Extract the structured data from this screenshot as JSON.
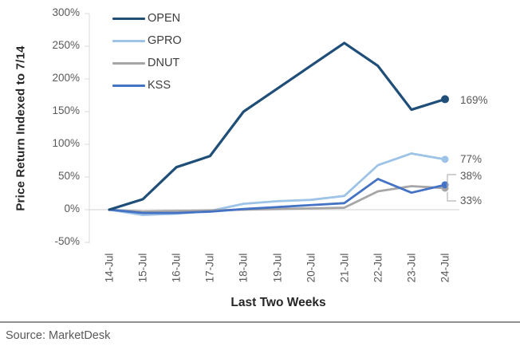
{
  "figure": {
    "source": "Source: MarketDesk"
  },
  "chart_data": {
    "type": "line",
    "title": "",
    "xlabel": "Last Two Weeks",
    "ylabel": "Price Return Indexed to 7/14",
    "x": [
      "14-Jul",
      "15-Jul",
      "16-Jul",
      "17-Jul",
      "18-Jul",
      "19-Jul",
      "20-Jul",
      "21-Jul",
      "22-Jul",
      "23-Jul",
      "24-Jul"
    ],
    "ylim": [
      -50,
      300
    ],
    "yticks": [
      300,
      250,
      200,
      150,
      100,
      50,
      0,
      -50
    ],
    "ytick_suffix": "%",
    "grid": "zero-baseline only",
    "legend_position": "top-left-inside",
    "axis_color": "#d9d9d9",
    "series": [
      {
        "name": "OPEN",
        "color": "#1f4e79",
        "end_label": "169%",
        "values": [
          0,
          16,
          65,
          82,
          150,
          185,
          220,
          255,
          220,
          153,
          169
        ]
      },
      {
        "name": "GPRO",
        "color": "#9dc3e6",
        "end_label": "77%",
        "values": [
          0,
          -8,
          -6,
          -2,
          9,
          13,
          15,
          21,
          68,
          86,
          77
        ]
      },
      {
        "name": "DNUT",
        "color": "#a6a6a6",
        "end_label": "33%",
        "values": [
          0,
          -3,
          -2,
          -1,
          0,
          1,
          2,
          3,
          28,
          36,
          33
        ]
      },
      {
        "name": "KSS",
        "color": "#4472c4",
        "end_label": "38%",
        "values": [
          0,
          -5,
          -5,
          -3,
          1,
          4,
          7,
          10,
          47,
          26,
          38
        ]
      }
    ]
  }
}
